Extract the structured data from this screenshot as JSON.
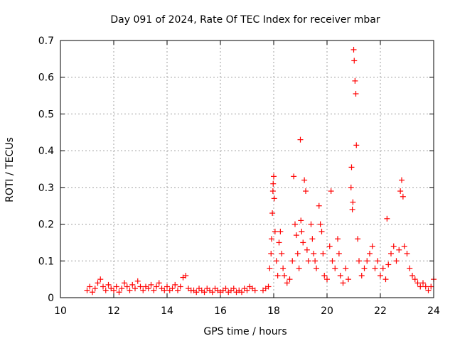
{
  "chart_data": {
    "type": "scatter",
    "title": "Day 091 of 2024, Rate Of TEC Index for receiver mbar",
    "xlabel": "GPS time / hours",
    "ylabel": "ROTI / TECUs",
    "xlim": [
      10,
      24
    ],
    "ylim": [
      0,
      0.7
    ],
    "xticks": [
      10,
      12,
      14,
      16,
      18,
      20,
      22,
      24
    ],
    "yticks": [
      0,
      0.1,
      0.2,
      0.3,
      0.4,
      0.5,
      0.6,
      0.7
    ],
    "xtick_labels": [
      "10",
      "12",
      "14",
      "16",
      "18",
      "20",
      "22",
      "24"
    ],
    "ytick_labels": [
      "0",
      "0.1",
      "0.2",
      "0.3",
      "0.4",
      "0.5",
      "0.6",
      "0.7"
    ],
    "grid": true,
    "marker": "+",
    "color": "#ff0000",
    "series": [
      {
        "name": "ROTI",
        "points": [
          [
            11.0,
            0.02
          ],
          [
            11.1,
            0.03
          ],
          [
            11.2,
            0.015
          ],
          [
            11.3,
            0.025
          ],
          [
            11.4,
            0.04
          ],
          [
            11.5,
            0.05
          ],
          [
            11.6,
            0.03
          ],
          [
            11.7,
            0.02
          ],
          [
            11.8,
            0.035
          ],
          [
            11.9,
            0.025
          ],
          [
            12.0,
            0.02
          ],
          [
            12.1,
            0.03
          ],
          [
            12.2,
            0.015
          ],
          [
            12.3,
            0.025
          ],
          [
            12.4,
            0.04
          ],
          [
            12.5,
            0.03
          ],
          [
            12.6,
            0.02
          ],
          [
            12.7,
            0.035
          ],
          [
            12.8,
            0.025
          ],
          [
            12.9,
            0.045
          ],
          [
            13.0,
            0.03
          ],
          [
            13.1,
            0.02
          ],
          [
            13.2,
            0.03
          ],
          [
            13.3,
            0.025
          ],
          [
            13.4,
            0.035
          ],
          [
            13.5,
            0.02
          ],
          [
            13.6,
            0.03
          ],
          [
            13.7,
            0.04
          ],
          [
            13.8,
            0.025
          ],
          [
            13.9,
            0.02
          ],
          [
            14.0,
            0.03
          ],
          [
            14.1,
            0.02
          ],
          [
            14.2,
            0.025
          ],
          [
            14.3,
            0.035
          ],
          [
            14.4,
            0.02
          ],
          [
            14.5,
            0.03
          ],
          [
            14.6,
            0.055
          ],
          [
            14.7,
            0.06
          ],
          [
            14.8,
            0.025
          ],
          [
            14.9,
            0.02
          ],
          [
            15.0,
            0.02
          ],
          [
            15.1,
            0.015
          ],
          [
            15.2,
            0.025
          ],
          [
            15.3,
            0.02
          ],
          [
            15.4,
            0.015
          ],
          [
            15.5,
            0.025
          ],
          [
            15.6,
            0.02
          ],
          [
            15.7,
            0.015
          ],
          [
            15.8,
            0.025
          ],
          [
            15.9,
            0.02
          ],
          [
            16.0,
            0.015
          ],
          [
            16.1,
            0.02
          ],
          [
            16.2,
            0.025
          ],
          [
            16.3,
            0.015
          ],
          [
            16.4,
            0.02
          ],
          [
            16.5,
            0.025
          ],
          [
            16.6,
            0.015
          ],
          [
            16.7,
            0.02
          ],
          [
            16.8,
            0.015
          ],
          [
            16.9,
            0.025
          ],
          [
            17.0,
            0.02
          ],
          [
            17.1,
            0.03
          ],
          [
            17.2,
            0.025
          ],
          [
            17.3,
            0.02
          ],
          [
            17.6,
            0.02
          ],
          [
            17.7,
            0.025
          ],
          [
            17.8,
            0.03
          ],
          [
            17.85,
            0.08
          ],
          [
            17.9,
            0.12
          ],
          [
            17.92,
            0.16
          ],
          [
            17.95,
            0.23
          ],
          [
            17.97,
            0.29
          ],
          [
            17.98,
            0.31
          ],
          [
            18.0,
            0.33
          ],
          [
            18.02,
            0.27
          ],
          [
            18.05,
            0.18
          ],
          [
            18.1,
            0.1
          ],
          [
            18.15,
            0.06
          ],
          [
            18.2,
            0.15
          ],
          [
            18.25,
            0.18
          ],
          [
            18.3,
            0.12
          ],
          [
            18.35,
            0.08
          ],
          [
            18.4,
            0.06
          ],
          [
            18.5,
            0.04
          ],
          [
            18.6,
            0.05
          ],
          [
            18.7,
            0.1
          ],
          [
            18.75,
            0.33
          ],
          [
            18.8,
            0.2
          ],
          [
            18.85,
            0.17
          ],
          [
            18.9,
            0.12
          ],
          [
            18.95,
            0.08
          ],
          [
            19.0,
            0.43
          ],
          [
            19.02,
            0.21
          ],
          [
            19.05,
            0.18
          ],
          [
            19.1,
            0.15
          ],
          [
            19.15,
            0.32
          ],
          [
            19.2,
            0.29
          ],
          [
            19.25,
            0.13
          ],
          [
            19.3,
            0.1
          ],
          [
            19.4,
            0.2
          ],
          [
            19.45,
            0.16
          ],
          [
            19.5,
            0.12
          ],
          [
            19.55,
            0.1
          ],
          [
            19.6,
            0.08
          ],
          [
            19.7,
            0.25
          ],
          [
            19.75,
            0.2
          ],
          [
            19.8,
            0.18
          ],
          [
            19.85,
            0.12
          ],
          [
            19.9,
            0.06
          ],
          [
            20.0,
            0.05
          ],
          [
            20.1,
            0.14
          ],
          [
            20.15,
            0.29
          ],
          [
            20.2,
            0.1
          ],
          [
            20.3,
            0.08
          ],
          [
            20.4,
            0.16
          ],
          [
            20.45,
            0.12
          ],
          [
            20.5,
            0.06
          ],
          [
            20.6,
            0.04
          ],
          [
            20.7,
            0.08
          ],
          [
            20.8,
            0.05
          ],
          [
            20.9,
            0.3
          ],
          [
            20.92,
            0.355
          ],
          [
            20.95,
            0.24
          ],
          [
            20.97,
            0.26
          ],
          [
            21.0,
            0.675
          ],
          [
            21.02,
            0.645
          ],
          [
            21.05,
            0.59
          ],
          [
            21.08,
            0.555
          ],
          [
            21.1,
            0.415
          ],
          [
            21.15,
            0.16
          ],
          [
            21.2,
            0.1
          ],
          [
            21.3,
            0.06
          ],
          [
            21.4,
            0.08
          ],
          [
            21.5,
            0.1
          ],
          [
            21.6,
            0.12
          ],
          [
            21.7,
            0.14
          ],
          [
            21.8,
            0.08
          ],
          [
            21.9,
            0.1
          ],
          [
            22.0,
            0.06
          ],
          [
            22.1,
            0.08
          ],
          [
            22.2,
            0.05
          ],
          [
            22.25,
            0.215
          ],
          [
            22.3,
            0.09
          ],
          [
            22.4,
            0.12
          ],
          [
            22.5,
            0.14
          ],
          [
            22.6,
            0.1
          ],
          [
            22.7,
            0.13
          ],
          [
            22.75,
            0.29
          ],
          [
            22.8,
            0.32
          ],
          [
            22.85,
            0.275
          ],
          [
            22.9,
            0.14
          ],
          [
            23.0,
            0.12
          ],
          [
            23.1,
            0.08
          ],
          [
            23.2,
            0.06
          ],
          [
            23.3,
            0.05
          ],
          [
            23.4,
            0.04
          ],
          [
            23.5,
            0.03
          ],
          [
            23.6,
            0.04
          ],
          [
            23.7,
            0.03
          ],
          [
            23.8,
            0.02
          ],
          [
            23.9,
            0.03
          ],
          [
            24.0,
            0.05
          ]
        ]
      }
    ]
  }
}
